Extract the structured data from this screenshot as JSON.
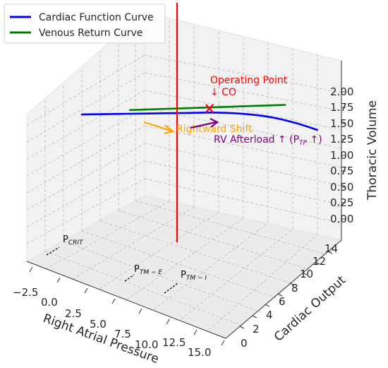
{
  "colors": {
    "cardiac": "#0000ff",
    "venous": "#008000",
    "vertical_line": "#ff0000",
    "operating_point": "#ff0000",
    "rightward_shift": "#ffa500",
    "rv_afterload": "#800080",
    "pressure_marker": "#000000"
  },
  "chart_data": {
    "type": "line",
    "projection": "3d",
    "xlabel": "Right Atrial Pressure",
    "ylabel": "Cardiac Output",
    "zlabel": "Thoracic Volume",
    "xlim": [
      -4,
      16.5
    ],
    "ylim": [
      -1,
      15.5
    ],
    "zlim": [
      -0.1,
      2.1
    ],
    "grid": true,
    "legend_position": "top-left",
    "x_ticks": [
      "−2.5",
      "0.0",
      "2.5",
      "5.0",
      "7.5",
      "10.0",
      "12.5",
      "15.0"
    ],
    "y_ticks": [
      "0",
      "2",
      "4",
      "6",
      "8",
      "10",
      "12",
      "14"
    ],
    "z_ticks": [
      "0.00",
      "0.25",
      "0.50",
      "0.75",
      "1.00",
      "1.25",
      "1.50",
      "1.75",
      "2.00"
    ],
    "series": [
      {
        "name": "Cardiac Function Curve",
        "x": [
          -2,
          0,
          2,
          4,
          6,
          8,
          10,
          12,
          14
        ],
        "y": [
          4,
          6,
          8,
          10,
          12,
          13.5,
          14.5,
          15,
          15.2
        ],
        "z": [
          1.55,
          1.55,
          1.55,
          1.55,
          1.55,
          1.55,
          1.55,
          1.55,
          1.55
        ]
      },
      {
        "name": "Venous Return Curve",
        "x": [
          0,
          2,
          4,
          6,
          8,
          10,
          12,
          14,
          16
        ],
        "y": [
          8,
          8,
          8,
          8,
          8,
          8,
          8,
          8,
          8
        ],
        "z": [
          1.5,
          1.6,
          1.7,
          1.8,
          1.9,
          2.0,
          2.1,
          2.2,
          2.3
        ]
      }
    ],
    "annotations": {
      "operating_point": {
        "line1": "Operating Point",
        "line2": "↓ CO"
      },
      "rightward_shift": "Rightward Shift",
      "rv_afterload": {
        "text": "RV Afterload ↑ (P",
        "sub": "TP",
        "tail": " ↑)"
      }
    },
    "pressure_markers": [
      {
        "base": "P",
        "sub": "CRIT"
      },
      {
        "base": "P",
        "sub": "TM − E"
      },
      {
        "base": "P",
        "sub": "TM − I"
      }
    ]
  }
}
